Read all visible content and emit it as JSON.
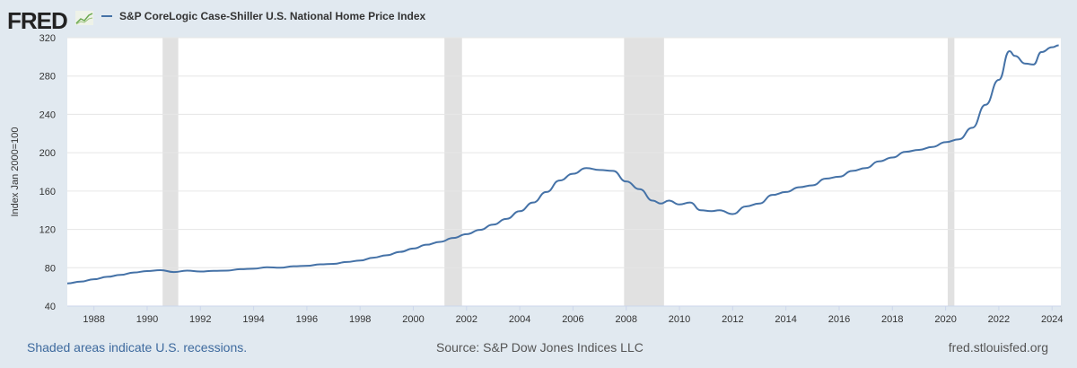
{
  "header": {
    "logo": "FRED",
    "legend_label": "S&P CoreLogic Case-Shiller U.S. National Home Price Index"
  },
  "footer": {
    "recessions_note": "Shaded areas indicate U.S. recessions.",
    "source": "Source: S&P Dow Jones Indices LLC",
    "site": "fred.stlouisfed.org"
  },
  "chart_data": {
    "type": "line",
    "title": "S&P CoreLogic Case-Shiller U.S. National Home Price Index",
    "xlabel": "",
    "ylabel": "Index Jan 2000=100",
    "xlim": [
      1987.0,
      2024.33
    ],
    "ylim": [
      40,
      320
    ],
    "yticks": [
      40,
      80,
      120,
      160,
      200,
      240,
      280,
      320
    ],
    "xticks": [
      1988,
      1990,
      1992,
      1994,
      1996,
      1998,
      2000,
      2002,
      2004,
      2006,
      2008,
      2010,
      2012,
      2014,
      2016,
      2018,
      2020,
      2022,
      2024
    ],
    "grid": true,
    "line_color": "#4572a7",
    "recessions": [
      [
        1990.58,
        1991.17
      ],
      [
        2001.17,
        2001.83
      ],
      [
        2007.92,
        2009.42
      ],
      [
        2020.08,
        2020.33
      ]
    ],
    "series": [
      {
        "name": "S&P CoreLogic Case-Shiller U.S. National Home Price Index",
        "x": [
          1987.0,
          1987.5,
          1988.0,
          1988.5,
          1989.0,
          1989.5,
          1990.0,
          1990.5,
          1991.0,
          1991.5,
          1992.0,
          1992.5,
          1993.0,
          1993.5,
          1994.0,
          1994.5,
          1995.0,
          1995.5,
          1996.0,
          1996.5,
          1997.0,
          1997.5,
          1998.0,
          1998.5,
          1999.0,
          1999.5,
          2000.0,
          2000.5,
          2001.0,
          2001.5,
          2002.0,
          2002.5,
          2003.0,
          2003.5,
          2004.0,
          2004.5,
          2005.0,
          2005.5,
          2006.0,
          2006.5,
          2007.0,
          2007.5,
          2008.0,
          2008.5,
          2009.0,
          2009.3,
          2009.6,
          2010.0,
          2010.4,
          2010.8,
          2011.2,
          2011.5,
          2012.0,
          2012.5,
          2013.0,
          2013.5,
          2014.0,
          2014.5,
          2015.0,
          2015.5,
          2016.0,
          2016.5,
          2017.0,
          2017.5,
          2018.0,
          2018.5,
          2019.0,
          2019.5,
          2020.0,
          2020.5,
          2021.0,
          2021.5,
          2022.0,
          2022.4,
          2022.6,
          2023.0,
          2023.3,
          2023.6,
          2024.0,
          2024.25
        ],
        "y": [
          63.7,
          65.5,
          68,
          70.5,
          72.5,
          75,
          76.5,
          77.5,
          75.5,
          77,
          76,
          76.8,
          77,
          78.5,
          79,
          80.5,
          80,
          81.5,
          82,
          83.5,
          84,
          86,
          87.5,
          90.5,
          93,
          96.5,
          100,
          104,
          107,
          111,
          115,
          119.5,
          125,
          131,
          139,
          148,
          159,
          171,
          178,
          184,
          182,
          181,
          170,
          162,
          150,
          147,
          150,
          146,
          148,
          140,
          139,
          140,
          136,
          144,
          147,
          156,
          159,
          164,
          166,
          173,
          175,
          181,
          184,
          191,
          195,
          201,
          203,
          206,
          211,
          214,
          226,
          250,
          276,
          306,
          301,
          293,
          292,
          305,
          310,
          312
        ]
      }
    ]
  }
}
